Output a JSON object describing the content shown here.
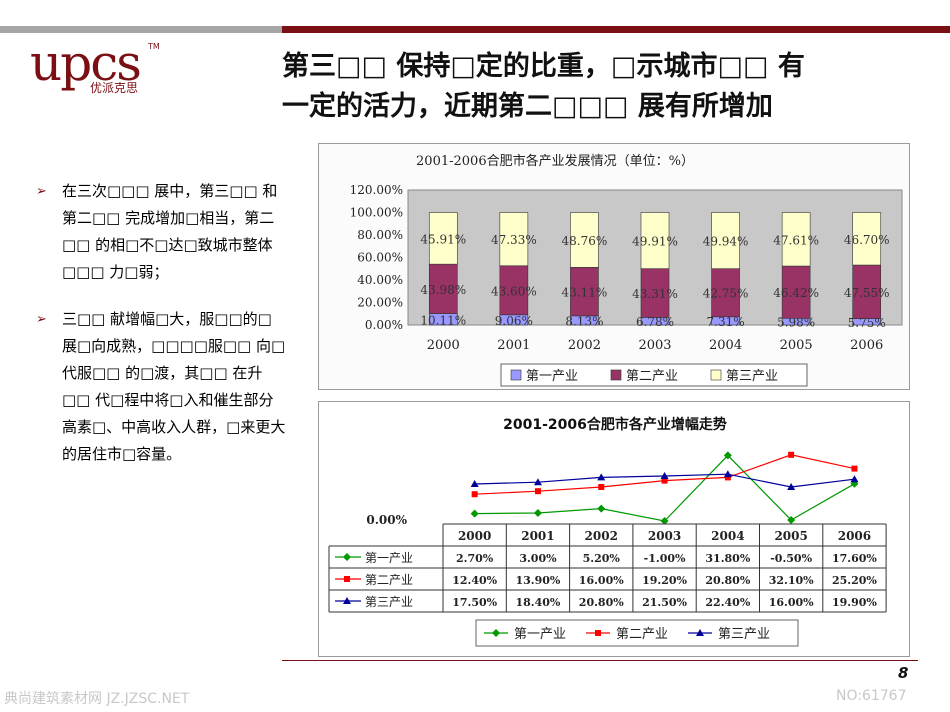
{
  "logo": {
    "main": "upcs",
    "tm": "TM",
    "sub": "优派克思"
  },
  "title": {
    "line1": "第三□□ 保持□定的比重，□示城市□□ 有",
    "line2": "一定的活力，近期第二□□□ 展有所增加"
  },
  "bullets": [
    {
      "marker": "➢",
      "text": "在三次□□□ 展中，第三□□ 和第二□□ 完成增加□相当，第二□□ 的相□不□达□致城市整体□□□ 力□弱；"
    },
    {
      "marker": "➢",
      "text": "三□□ 献增幅□大，服□□的□展□向成熟，□□□□服□□ 向□代服□□ 的□渡，其□□ 在升□□ 代□程中将□入和催生部分高素□、中高收入人群，□来更大的居住市□容量。"
    }
  ],
  "colors": {
    "brand": "#7a0f14",
    "primary_bar": "#9999ff",
    "secondary_bar": "#993366",
    "tertiary_bar": "#ffffcc",
    "line_primary": "#009900",
    "line_secondary": "#ff0000",
    "line_tertiary": "#000099"
  },
  "chart_data": [
    {
      "type": "bar",
      "stacked": true,
      "title": "2001-2006合肥市各产业发展情况（单位：%）",
      "categories": [
        "2000",
        "2001",
        "2002",
        "2003",
        "2004",
        "2005",
        "2006"
      ],
      "yticks": [
        "0.00%",
        "20.00%",
        "40.00%",
        "60.00%",
        "80.00%",
        "100.00%",
        "120.00%"
      ],
      "ylim": [
        0,
        120
      ],
      "grid": false,
      "legend_position": "bottom",
      "series": [
        {
          "name": "第一产业",
          "values": [
            10.11,
            9.06,
            8.13,
            6.78,
            7.31,
            5.98,
            5.75
          ],
          "labels": [
            "10.11%",
            "9.06%",
            "8.13%",
            "6.78%",
            "7.31%",
            "5.98%",
            "5.75%"
          ]
        },
        {
          "name": "第二产业",
          "values": [
            43.98,
            43.6,
            43.11,
            43.31,
            42.75,
            46.42,
            47.55
          ],
          "labels": [
            "43.98%",
            "43.60%",
            "43.11%",
            "43.31%",
            "42.75%",
            "46.42%",
            "47.55%"
          ]
        },
        {
          "name": "第三产业",
          "values": [
            45.91,
            47.33,
            48.76,
            49.91,
            49.94,
            47.61,
            46.7
          ],
          "labels": [
            "45.91%",
            "47.33%",
            "48.76%",
            "49.91%",
            "49.94%",
            "47.61%",
            "46.70%"
          ]
        }
      ]
    },
    {
      "type": "line",
      "title": "2001-2006合肥市各产业增幅走势",
      "categories": [
        "2000",
        "2001",
        "2002",
        "2003",
        "2004",
        "2005",
        "2006"
      ],
      "yticks": [
        "0.00%"
      ],
      "ylim": [
        0,
        32
      ],
      "legend_position": "bottom",
      "table": true,
      "series": [
        {
          "name": "第一产业",
          "values": [
            2.7,
            3.0,
            5.2,
            -1.0,
            31.8,
            -0.5,
            17.6
          ],
          "labels": [
            "2.70%",
            "3.00%",
            "5.20%",
            "-1.00%",
            "31.80%",
            "-0.50%",
            "17.60%"
          ]
        },
        {
          "name": "第二产业",
          "values": [
            12.4,
            13.9,
            16.0,
            19.2,
            20.8,
            32.1,
            25.2
          ],
          "labels": [
            "12.40%",
            "13.90%",
            "16.00%",
            "19.20%",
            "20.80%",
            "32.10%",
            "25.20%"
          ]
        },
        {
          "name": "第三产业",
          "values": [
            17.5,
            18.4,
            20.8,
            21.5,
            22.4,
            16.0,
            19.9
          ],
          "labels": [
            "17.50%",
            "18.40%",
            "20.80%",
            "21.50%",
            "22.40%",
            "16.00%",
            "19.90%"
          ]
        }
      ]
    }
  ],
  "footer": {
    "page": "8",
    "watermark_left": "典尚建筑素材网 JZ.JZSC.NET",
    "watermark_right": "NO:61767"
  }
}
